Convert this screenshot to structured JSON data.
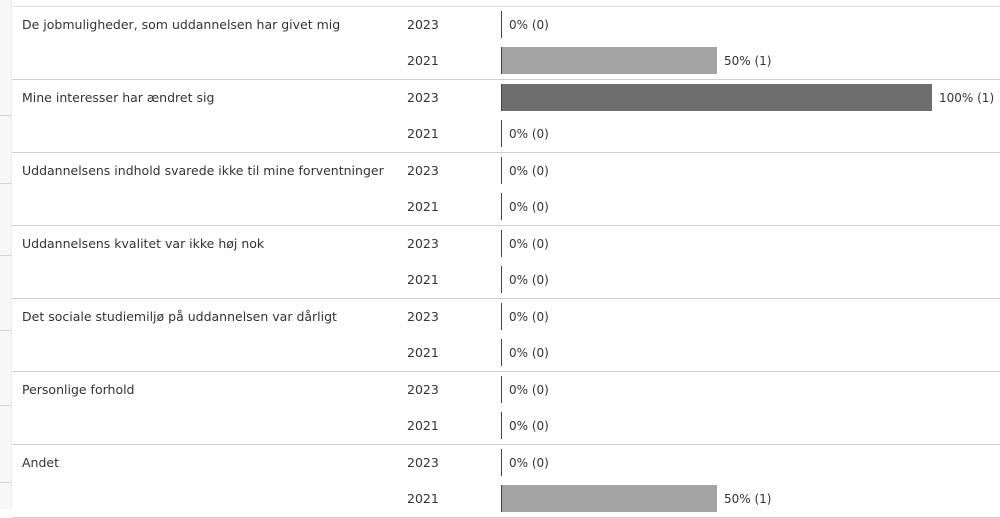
{
  "chart_data": {
    "type": "bar",
    "orientation": "horizontal",
    "xlim": [
      0,
      100
    ],
    "colors": {
      "2023": "#6e6e6e",
      "2021": "#a3a3a3"
    },
    "groups": [
      {
        "category": "De jobmuligheder, som uddannelsen har givet mig",
        "rows": [
          {
            "year": "2023",
            "value": 0,
            "label": "0% (0)"
          },
          {
            "year": "2021",
            "value": 50,
            "label": "50% (1)"
          }
        ]
      },
      {
        "category": "Mine interesser har ændret sig",
        "rows": [
          {
            "year": "2023",
            "value": 100,
            "label": "100% (1)"
          },
          {
            "year": "2021",
            "value": 0,
            "label": "0% (0)"
          }
        ]
      },
      {
        "category": "Uddannelsens indhold svarede ikke til mine forventninger",
        "rows": [
          {
            "year": "2023",
            "value": 0,
            "label": "0% (0)"
          },
          {
            "year": "2021",
            "value": 0,
            "label": "0% (0)"
          }
        ]
      },
      {
        "category": "Uddannelsens kvalitet var ikke høj nok",
        "rows": [
          {
            "year": "2023",
            "value": 0,
            "label": "0% (0)"
          },
          {
            "year": "2021",
            "value": 0,
            "label": "0% (0)"
          }
        ]
      },
      {
        "category": "Det sociale studiemiljø på uddannelsen var dårligt",
        "rows": [
          {
            "year": "2023",
            "value": 0,
            "label": "0% (0)"
          },
          {
            "year": "2021",
            "value": 0,
            "label": "0% (0)"
          }
        ]
      },
      {
        "category": "Personlige forhold",
        "rows": [
          {
            "year": "2023",
            "value": 0,
            "label": "0% (0)"
          },
          {
            "year": "2021",
            "value": 0,
            "label": "0% (0)"
          }
        ]
      },
      {
        "category": "Andet",
        "rows": [
          {
            "year": "2023",
            "value": 0,
            "label": "0% (0)"
          },
          {
            "year": "2021",
            "value": 50,
            "label": "50% (1)"
          }
        ]
      }
    ]
  }
}
